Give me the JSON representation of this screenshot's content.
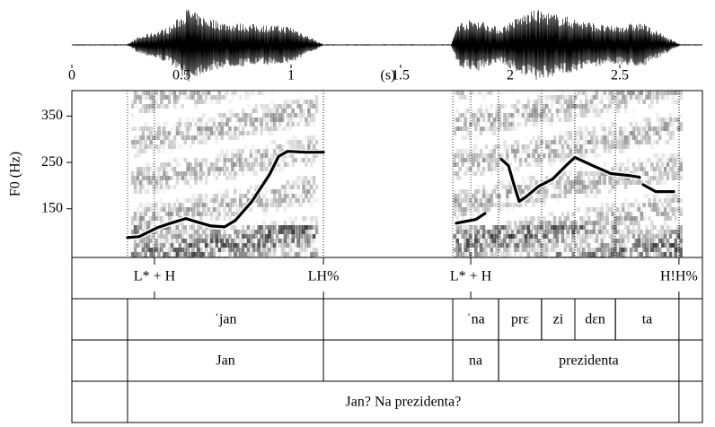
{
  "chart_data": {
    "type": "line",
    "xlabel": "(s)",
    "ylabel": "F0 (Hz)",
    "xlim": [
      0,
      2.877
    ],
    "xticks": [
      0,
      0.5,
      1,
      1.5,
      2,
      2.5
    ],
    "ylim": [
      45,
      405
    ],
    "yticks": [
      150,
      250,
      350
    ],
    "series": [
      {
        "color": "#000000",
        "x": [
          0.254,
          0.307,
          0.389,
          0.451,
          0.52,
          0.574,
          0.635,
          0.697,
          0.746,
          0.82,
          0.902,
          0.943,
          0.984,
          1.066,
          1.148,
          null,
          1.754,
          1.844,
          1.885,
          null,
          1.959,
          1.992,
          2.016,
          2.041,
          2.07,
          2.131,
          2.193,
          2.254,
          2.295,
          2.377,
          2.459,
          2.541,
          2.59,
          null,
          2.607,
          2.664,
          2.746
        ],
        "values": [
          88,
          90,
          109,
          119,
          129,
          121,
          113,
          111,
          125,
          165,
          224,
          263,
          274,
          272,
          272,
          null,
          119,
          127,
          140,
          null,
          257,
          243,
          204,
          166,
          175,
          199,
          214,
          243,
          261,
          243,
          226,
          222,
          218,
          null,
          202,
          187,
          187
        ]
      }
    ],
    "tiers": [
      {
        "kind": "point",
        "points": [
          {
            "time": 0.377,
            "label": "L* + H"
          },
          {
            "time": 1.148,
            "label": "LH%"
          },
          {
            "time": 1.82,
            "label": "L* + H"
          },
          {
            "time": 2.77,
            "label": "H!H%"
          }
        ]
      },
      {
        "kind": "interval",
        "intervals": [
          {
            "start": 0.254,
            "end": 1.148,
            "label": "ˈjan"
          },
          {
            "start": 1.738,
            "end": 1.947,
            "label": "ˈna"
          },
          {
            "start": 1.947,
            "end": 2.143,
            "label": "prɛ"
          },
          {
            "start": 2.143,
            "end": 2.295,
            "label": "zi"
          },
          {
            "start": 2.295,
            "end": 2.48,
            "label": "dɛn"
          },
          {
            "start": 2.48,
            "end": 2.77,
            "label": "ta"
          }
        ]
      },
      {
        "kind": "interval",
        "intervals": [
          {
            "start": 0.254,
            "end": 1.148,
            "label": "Jan"
          },
          {
            "start": 1.738,
            "end": 1.947,
            "label": "na"
          },
          {
            "start": 1.947,
            "end": 2.77,
            "label": "prezidenta"
          }
        ]
      },
      {
        "kind": "interval",
        "intervals": [
          {
            "start": 0.254,
            "end": 2.77,
            "label": "Jan? Na prezidenta?"
          }
        ]
      }
    ]
  }
}
